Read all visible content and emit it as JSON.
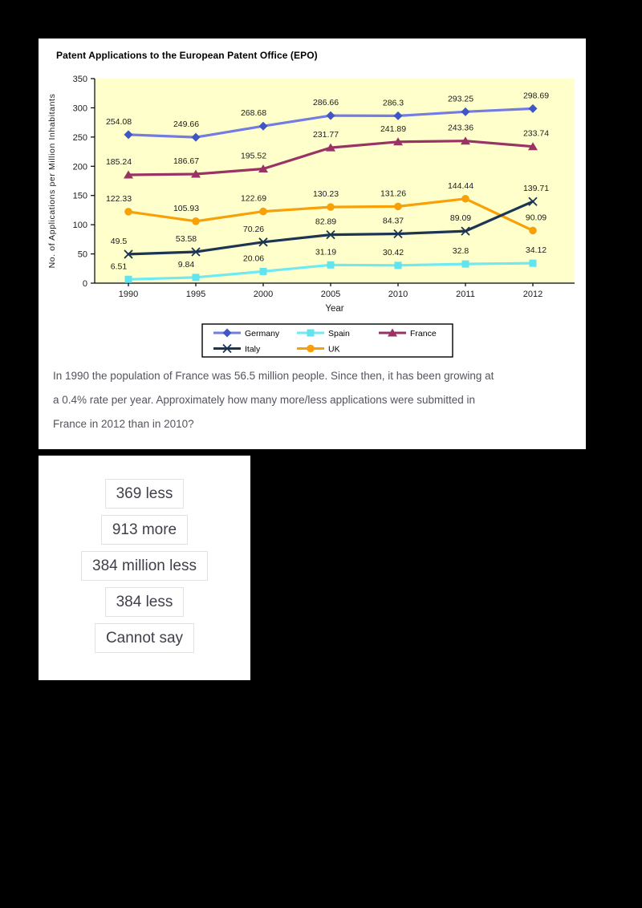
{
  "panel1": {
    "title": "Patent Applications to the European Patent Office (EPO)",
    "question_lines": [
      "In 1990 the population of France was 56.5 million people. Since then, it has been growing at",
      "a 0.4% rate per year. Approximately how many more/less applications were submitted in",
      "France in 2012 than in 2010?"
    ]
  },
  "chart_data": {
    "type": "line",
    "title": "Patent Applications to the European Patent Office (EPO)",
    "xlabel": "Year",
    "ylabel": "No. of Applications per Million Inhabitants",
    "categories": [
      "1990",
      "1995",
      "2000",
      "2005",
      "2010",
      "2011",
      "2012"
    ],
    "ylim": [
      0,
      350
    ],
    "yticks": [
      0,
      50,
      100,
      150,
      200,
      250,
      300,
      350
    ],
    "grid": false,
    "plot_bg": "#FFFFCC",
    "legend_position": "bottom-box",
    "series": [
      {
        "name": "Germany",
        "marker": "diamond",
        "line_color": "#737ce2",
        "marker_color": "#3e56c6",
        "values": [
          254.08,
          249.66,
          268.68,
          286.66,
          286.3,
          293.25,
          298.69
        ]
      },
      {
        "name": "Spain",
        "marker": "square",
        "line_color": "#6fe9f2",
        "marker_color": "#62e3ee",
        "values": [
          6.51,
          9.84,
          20.06,
          31.19,
          30.42,
          32.8,
          34.12
        ]
      },
      {
        "name": "France",
        "marker": "triangle",
        "line_color": "#993366",
        "marker_color": "#993366",
        "values": [
          185.24,
          186.67,
          195.52,
          231.77,
          241.89,
          243.36,
          233.74
        ]
      },
      {
        "name": "Italy",
        "marker": "x",
        "line_color": "#1c3553",
        "marker_color": "#1c3553",
        "values": [
          49.5,
          53.58,
          70.26,
          82.89,
          84.37,
          89.09,
          139.71
        ]
      },
      {
        "name": "UK",
        "marker": "circle",
        "line_color": "#f7a008",
        "marker_color": "#f7a008",
        "values": [
          122.33,
          105.93,
          122.69,
          130.23,
          131.26,
          144.44,
          90.09
        ]
      }
    ]
  },
  "answers": {
    "options": [
      "369 less",
      "913 more",
      "384 million less",
      "384 less",
      "Cannot say"
    ]
  }
}
